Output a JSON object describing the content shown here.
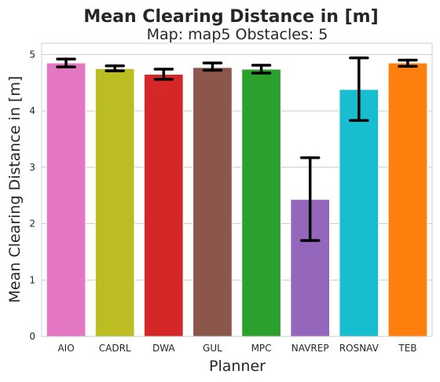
{
  "chart_data": {
    "type": "bar",
    "title": "Mean Clearing Distance in [m]",
    "subtitle": "Map: map5 Obstacles: 5",
    "xlabel": "Planner",
    "ylabel": "Mean Clearing Distance in [m]",
    "categories": [
      "AIO",
      "CADRL",
      "DWA",
      "GUL",
      "MPC",
      "NAVREP",
      "ROSNAV",
      "TEB"
    ],
    "values": [
      4.85,
      4.75,
      4.65,
      4.77,
      4.74,
      2.43,
      4.38,
      4.85
    ],
    "error_low": [
      4.78,
      4.71,
      4.56,
      4.72,
      4.67,
      1.7,
      3.83,
      4.79
    ],
    "error_high": [
      4.92,
      4.8,
      4.74,
      4.85,
      4.81,
      3.17,
      4.94,
      4.9
    ],
    "colors": [
      "#e377c2",
      "#bcbd22",
      "#d62728",
      "#8c564b",
      "#2ca02c",
      "#9467bd",
      "#17becf",
      "#ff7f0e"
    ],
    "ylim": [
      0,
      5.2
    ],
    "yticks": [
      0,
      1,
      2,
      3,
      4,
      5
    ],
    "grid": "horizontal"
  }
}
